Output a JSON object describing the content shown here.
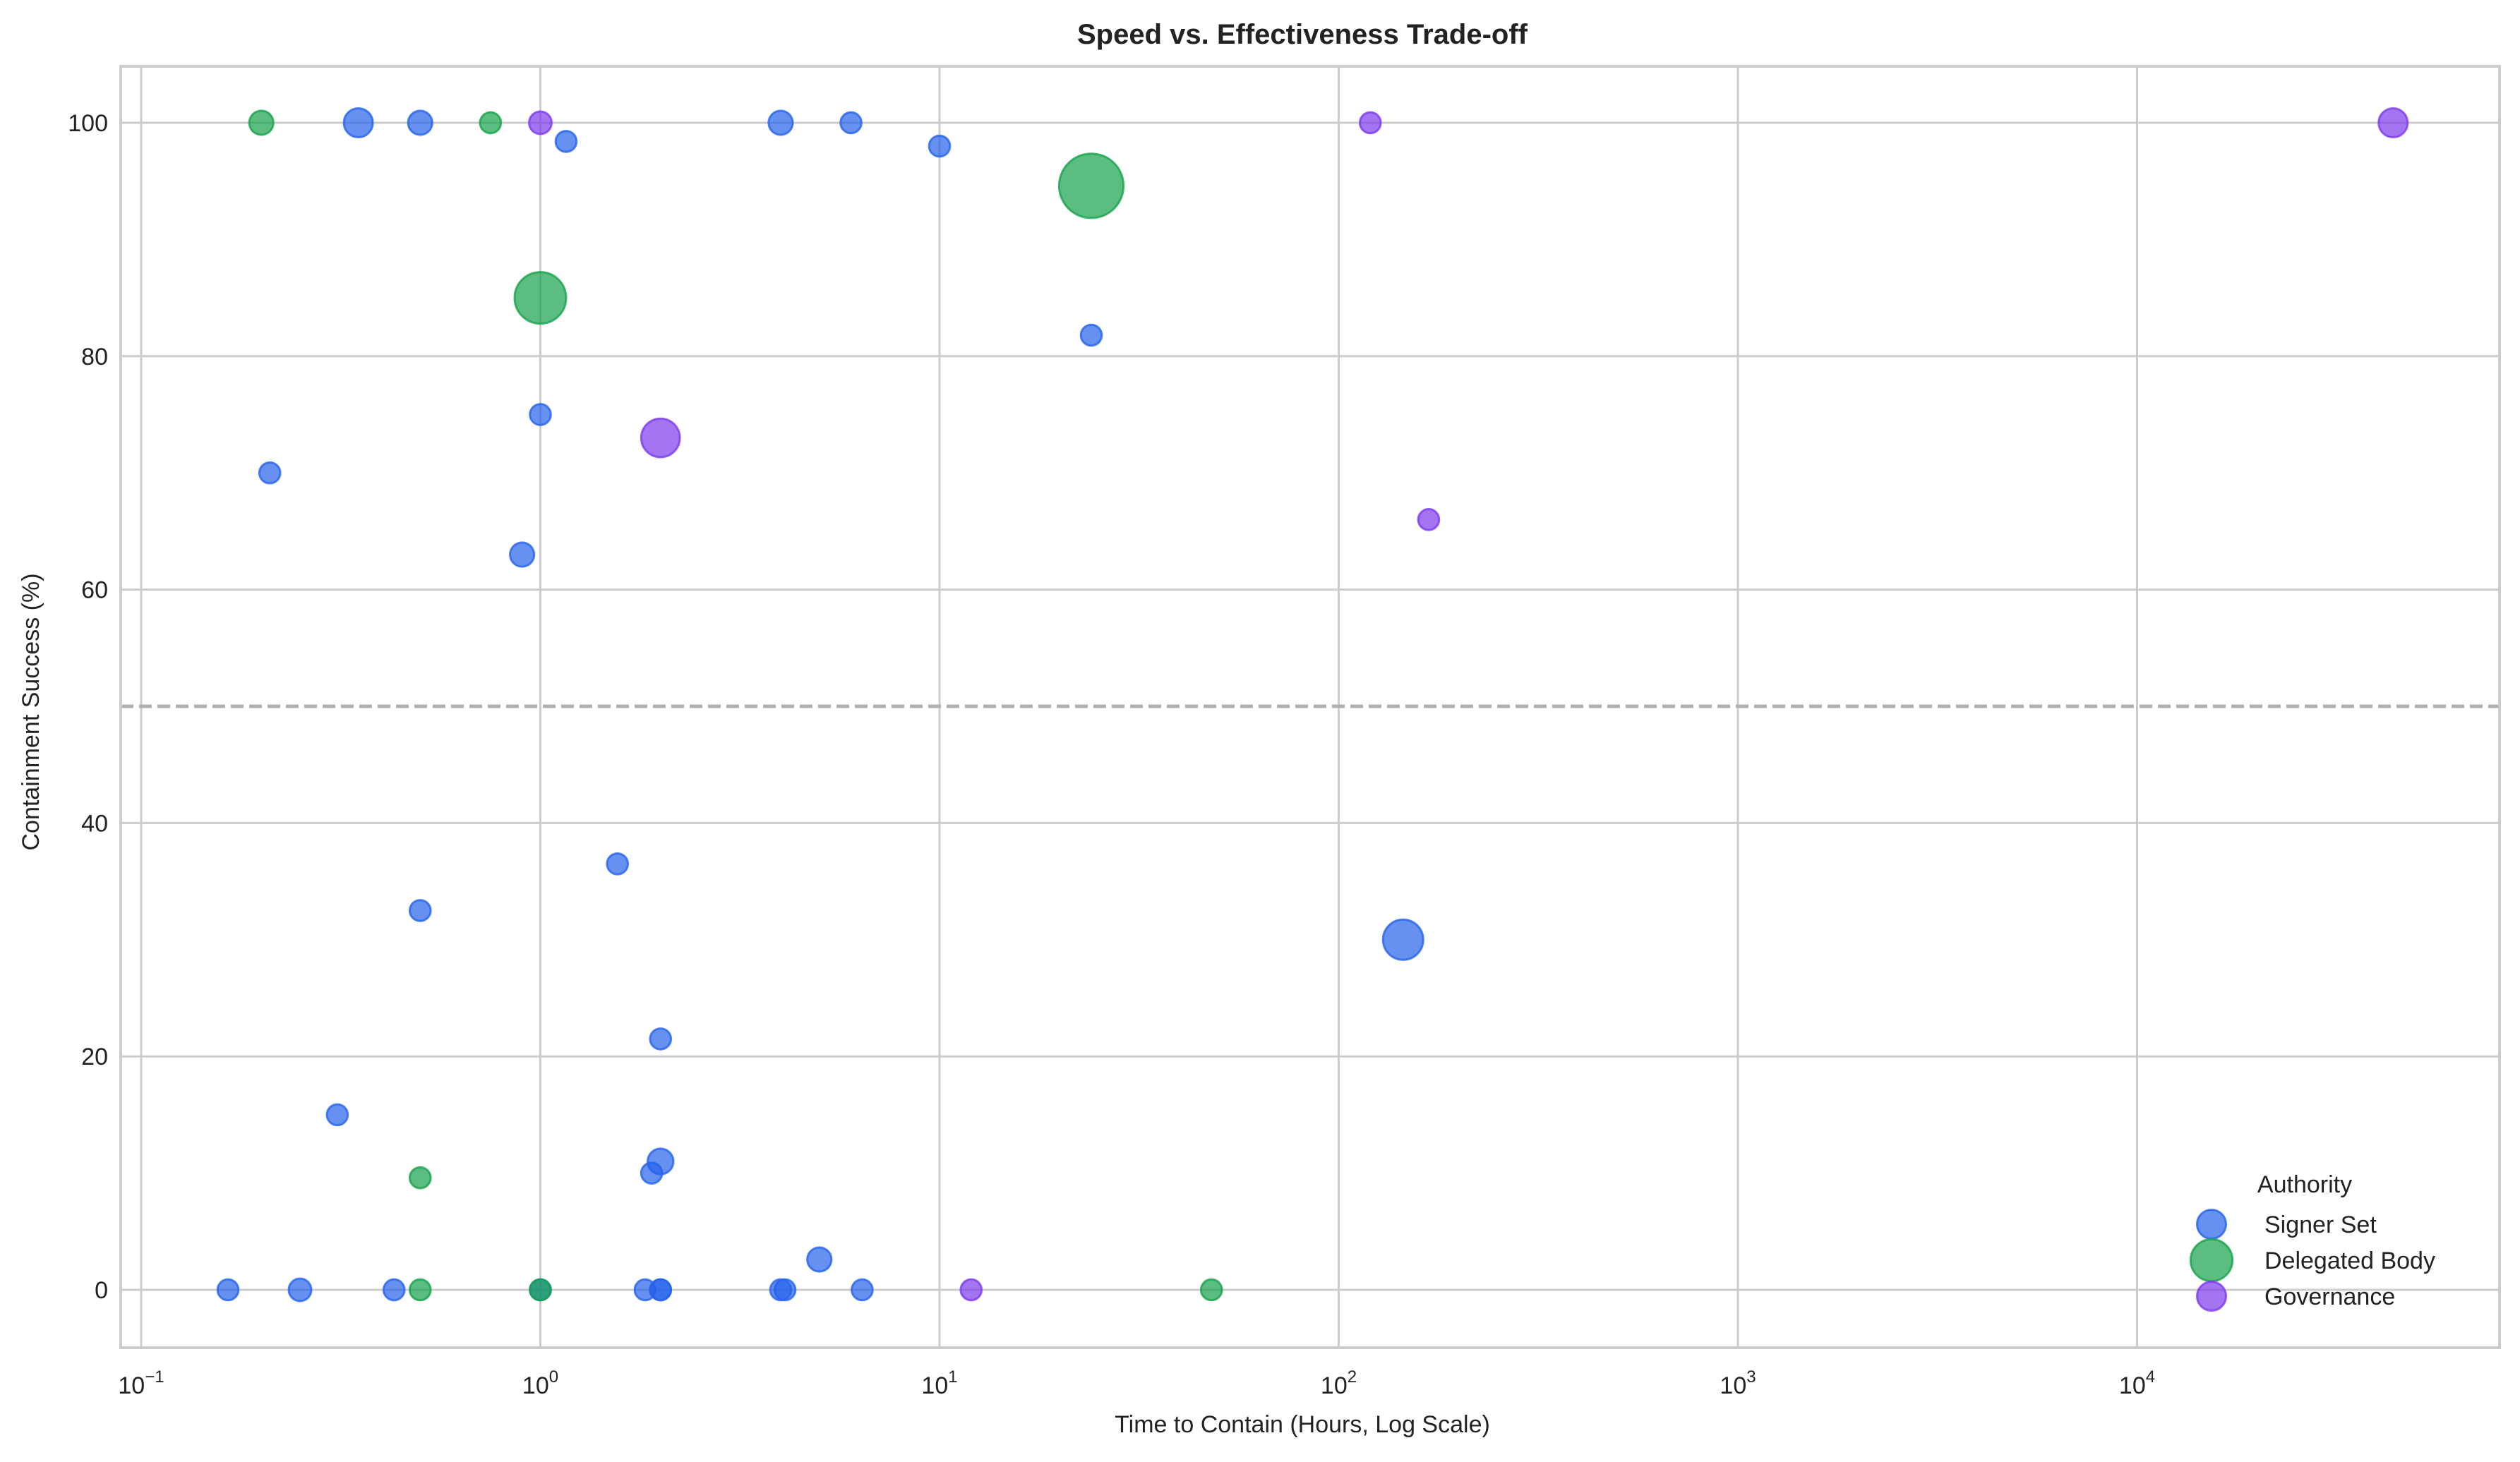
{
  "chart_data": {
    "type": "scatter",
    "title": "Speed vs. Effectiveness Trade-off",
    "xlabel": "Time to Contain (Hours, Log Scale)",
    "ylabel": "Containment Success (%)",
    "xscale": "log",
    "xlim": [
      0.09,
      80000
    ],
    "ylim": [
      -5,
      105
    ],
    "xticks": [
      {
        "value": 0.1,
        "base": "10",
        "exp": "−1"
      },
      {
        "value": 1,
        "base": "10",
        "exp": "0"
      },
      {
        "value": 10,
        "base": "10",
        "exp": "1"
      },
      {
        "value": 100,
        "base": "10",
        "exp": "2"
      },
      {
        "value": 1000,
        "base": "10",
        "exp": "3"
      },
      {
        "value": 10000,
        "base": "10",
        "exp": "4"
      }
    ],
    "yticks": [
      0,
      20,
      40,
      60,
      80,
      100
    ],
    "grid": true,
    "reference_line": {
      "y": 50,
      "style": "dashed",
      "color": "#b0b0b0"
    },
    "legend": {
      "title": "Authority",
      "position": "lower right"
    },
    "series": [
      {
        "name": "Signer Set",
        "color": "#2563eb",
        "points": [
          {
            "x": 0.35,
            "y": 100,
            "size": 9
          },
          {
            "x": 0.5,
            "y": 100,
            "size": 7.5
          },
          {
            "x": 4,
            "y": 100,
            "size": 7.5
          },
          {
            "x": 6,
            "y": 100,
            "size": 6.5
          },
          {
            "x": 1.16,
            "y": 98.4,
            "size": 6.5
          },
          {
            "x": 10,
            "y": 98,
            "size": 6.5
          },
          {
            "x": 24,
            "y": 81.8,
            "size": 6.5
          },
          {
            "x": 1,
            "y": 75,
            "size": 6.5
          },
          {
            "x": 0.21,
            "y": 70,
            "size": 6.5
          },
          {
            "x": 0.9,
            "y": 63,
            "size": 7.5
          },
          {
            "x": 1.56,
            "y": 36.5,
            "size": 6.5
          },
          {
            "x": 0.5,
            "y": 32.5,
            "size": 6.5
          },
          {
            "x": 145,
            "y": 30,
            "size": 12.5
          },
          {
            "x": 2,
            "y": 21.5,
            "size": 6.5
          },
          {
            "x": 0.31,
            "y": 15,
            "size": 6.5
          },
          {
            "x": 2,
            "y": 11,
            "size": 8
          },
          {
            "x": 1.9,
            "y": 10,
            "size": 6.5
          },
          {
            "x": 5,
            "y": 2.6,
            "size": 7.5
          },
          {
            "x": 0.165,
            "y": 0,
            "size": 6.5
          },
          {
            "x": 0.25,
            "y": 0,
            "size": 7
          },
          {
            "x": 0.43,
            "y": 0,
            "size": 6.5
          },
          {
            "x": 1,
            "y": 0,
            "size": 6.5
          },
          {
            "x": 1.83,
            "y": 0,
            "size": 6.5
          },
          {
            "x": 2,
            "y": 0,
            "size": 6.5
          },
          {
            "x": 2,
            "y": 0,
            "size": 6.5
          },
          {
            "x": 4,
            "y": 0,
            "size": 6.5
          },
          {
            "x": 4.1,
            "y": 0,
            "size": 6.5
          },
          {
            "x": 6.4,
            "y": 0,
            "size": 6.5
          }
        ]
      },
      {
        "name": "Delegated Body",
        "color": "#16a34a",
        "points": [
          {
            "x": 0.2,
            "y": 100,
            "size": 7.5
          },
          {
            "x": 0.75,
            "y": 100,
            "size": 6.5
          },
          {
            "x": 24,
            "y": 94.6,
            "size": 20
          },
          {
            "x": 1,
            "y": 85,
            "size": 16
          },
          {
            "x": 0.5,
            "y": 9.6,
            "size": 6.5
          },
          {
            "x": 0.5,
            "y": 0,
            "size": 6.5
          },
          {
            "x": 1,
            "y": 0,
            "size": 6.5
          },
          {
            "x": 48,
            "y": 0,
            "size": 6.5
          }
        ]
      },
      {
        "name": "Governance",
        "color": "#7c3aed",
        "points": [
          {
            "x": 1,
            "y": 100,
            "size": 7
          },
          {
            "x": 120,
            "y": 100,
            "size": 6.5
          },
          {
            "x": 43800,
            "y": 100,
            "size": 9
          },
          {
            "x": 2,
            "y": 73,
            "size": 12
          },
          {
            "x": 168,
            "y": 66,
            "size": 6.5
          },
          {
            "x": 12,
            "y": 0,
            "size": 6.5
          }
        ]
      }
    ]
  },
  "colors": {
    "grid": "#cccccc",
    "axes": "#cccccc",
    "text": "#222222"
  }
}
